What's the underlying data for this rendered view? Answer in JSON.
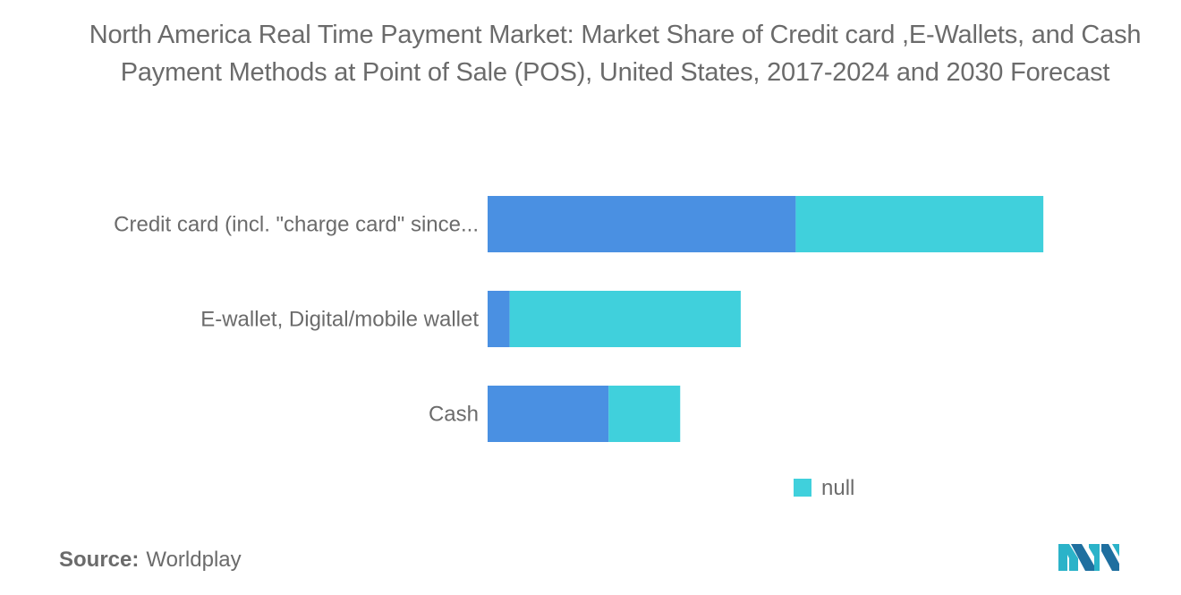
{
  "title": "North America Real Time Payment Market: Market Share of Credit card ,E-Wallets, and Cash Payment Methods at Point of Sale (POS), United States, 2017-2024 and 2030 Forecast",
  "source": {
    "label": "Source:",
    "value": "Worldplay"
  },
  "logo_icon": "mordor-intelligence-logo-icon",
  "colors": {
    "series1": "#4a90e2",
    "series2": "#40d0dc",
    "text": "#6b6b6b"
  },
  "chart_data": {
    "type": "bar",
    "orientation": "horizontal",
    "stacked": true,
    "categories": [
      "Credit card (incl. \"charge card\" since...",
      "E-wallet, Digital/mobile wallet",
      "Cash"
    ],
    "series": [
      {
        "values": [
          28,
          2,
          11
        ],
        "color": "#4a90e2"
      },
      {
        "name": "null",
        "values": [
          22.5,
          21,
          6.5
        ],
        "color": "#40d0dc"
      }
    ],
    "xlim": [
      0,
      60
    ],
    "grid": false,
    "legend": {
      "position": "bottom",
      "entries": [
        "null"
      ]
    }
  }
}
